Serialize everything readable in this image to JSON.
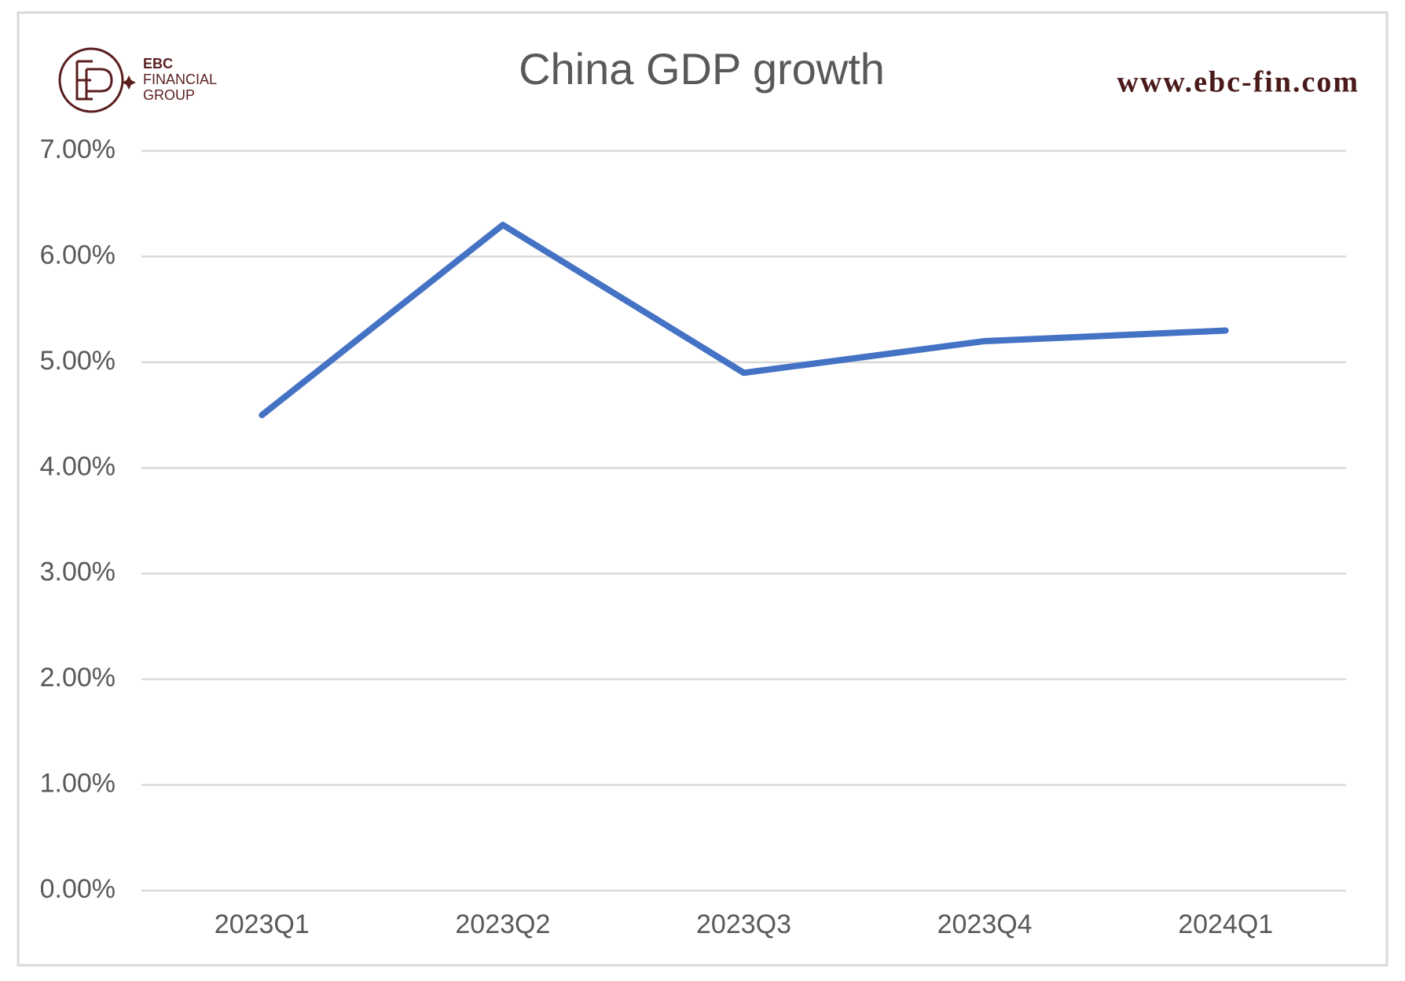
{
  "branding": {
    "logo_name": "EBC",
    "logo_line2": "FINANCIAL",
    "logo_line3": "GROUP",
    "website": "www.ebc-fin.com"
  },
  "chart_data": {
    "type": "line",
    "title": "China GDP growth",
    "categories": [
      "2023Q1",
      "2023Q2",
      "2023Q3",
      "2023Q4",
      "2024Q1"
    ],
    "series": [
      {
        "name": "China GDP growth",
        "color": "#4472c4",
        "values": [
          4.5,
          6.3,
          4.9,
          5.2,
          5.3
        ]
      }
    ],
    "ylim": [
      0,
      7
    ],
    "yticks": [
      {
        "value": 0,
        "label": "0.00%"
      },
      {
        "value": 1,
        "label": "1.00%"
      },
      {
        "value": 2,
        "label": "2.00%"
      },
      {
        "value": 3,
        "label": "3.00%"
      },
      {
        "value": 4,
        "label": "4.00%"
      },
      {
        "value": 5,
        "label": "5.00%"
      },
      {
        "value": 6,
        "label": "6.00%"
      },
      {
        "value": 7,
        "label": "7.00%"
      }
    ],
    "grid": true
  }
}
